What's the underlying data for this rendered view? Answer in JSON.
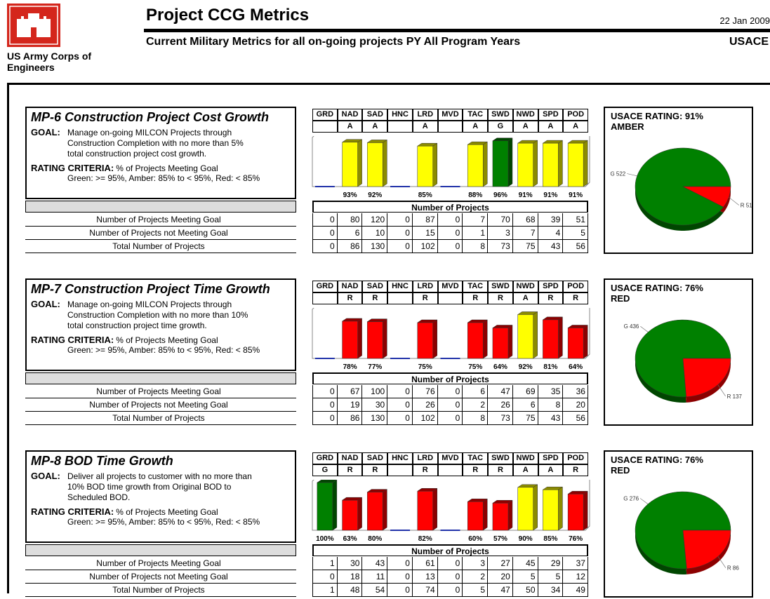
{
  "header": {
    "org": "US Army Corps of Engineers",
    "title": "Project CCG Metrics",
    "date": "22 Jan 2009",
    "subtitle": "Current Military Metrics for all on-going projects PY All Program Years",
    "agency": "USACE"
  },
  "districts": [
    "GRD",
    "NAD",
    "SAD",
    "HNC",
    "LRD",
    "MVD",
    "TAC",
    "SWD",
    "NWD",
    "SPD",
    "POD"
  ],
  "rating_colors": {
    "A": "#ffff00",
    "G": "#008000",
    "R": "#ff0000"
  },
  "ylim": [
    0,
    100
  ],
  "panels": [
    {
      "title": "MP-6 Construction Project Cost Growth",
      "goal_label": "GOAL:",
      "goal": "Manage on-going MILCON Projects through Construction Completion with no more than 5% total construction project cost growth.",
      "criteria_label": "RATING CRITERIA:",
      "criteria": "% of Projects Meeting Goal",
      "thresholds": "Green: >= 95%,  Amber: 85% to < 95%,  Red: < 85%",
      "ratings": [
        null,
        "A",
        "A",
        null,
        "A",
        null,
        "A",
        "G",
        "A",
        "A",
        "A"
      ],
      "percents": [
        null,
        93,
        92,
        null,
        85,
        null,
        88,
        96,
        91,
        91,
        91
      ],
      "percent_labels": [
        null,
        "93%",
        "92%",
        null,
        "85%",
        null,
        "88%",
        "96%",
        "91%",
        "91%",
        "91%"
      ],
      "table_heading": "Number of Projects",
      "rows": [
        {
          "label": "Number of Projects Meeting Goal",
          "values": [
            0,
            80,
            120,
            0,
            87,
            0,
            7,
            70,
            68,
            39,
            51
          ]
        },
        {
          "label": "Number of Projects not Meeting Goal",
          "values": [
            0,
            6,
            10,
            0,
            15,
            0,
            1,
            3,
            7,
            4,
            5
          ]
        },
        {
          "label": "Total Number of Projects",
          "values": [
            0,
            86,
            130,
            0,
            102,
            0,
            8,
            73,
            75,
            43,
            56
          ]
        }
      ],
      "rating_label": "USACE RATING: 91%",
      "rating_status": "AMBER",
      "pie": [
        {
          "label": "G 522",
          "value": 522,
          "color": "#008000"
        },
        {
          "label": "R 51",
          "value": 51,
          "color": "#ff0000"
        }
      ]
    },
    {
      "title": "MP-7 Construction Project Time Growth",
      "goal_label": "GOAL:",
      "goal": "Manage on-going MILCON Projects through Construction Completion with no more than 10% total construction project time growth.",
      "criteria_label": "RATING CRITERIA:",
      "criteria": "% of Projects Meeting Goal",
      "thresholds": "Green: >= 95%,  Amber: 85% to < 95%,  Red: < 85%",
      "ratings": [
        null,
        "R",
        "R",
        null,
        "R",
        null,
        "R",
        "R",
        "A",
        "R",
        "R"
      ],
      "percents": [
        null,
        78,
        77,
        null,
        75,
        null,
        75,
        64,
        92,
        81,
        64
      ],
      "percent_labels": [
        null,
        "78%",
        "77%",
        null,
        "75%",
        null,
        "75%",
        "64%",
        "92%",
        "81%",
        "64%"
      ],
      "table_heading": "Number of Projects",
      "rows": [
        {
          "label": "Number of Projects Meeting Goal",
          "values": [
            0,
            67,
            100,
            0,
            76,
            0,
            6,
            47,
            69,
            35,
            36
          ]
        },
        {
          "label": "Number of Projects not Meeting Goal",
          "values": [
            0,
            19,
            30,
            0,
            26,
            0,
            2,
            26,
            6,
            8,
            20
          ]
        },
        {
          "label": "Total Number of Projects",
          "values": [
            0,
            86,
            130,
            0,
            102,
            0,
            8,
            73,
            75,
            43,
            56
          ]
        }
      ],
      "rating_label": "USACE RATING: 76%",
      "rating_status": "RED",
      "pie": [
        {
          "label": "G 436",
          "value": 436,
          "color": "#008000"
        },
        {
          "label": "R 137",
          "value": 137,
          "color": "#ff0000"
        }
      ]
    },
    {
      "title": "MP-8 BOD Time Growth",
      "goal_label": "GOAL:",
      "goal": "Deliver all projects to customer with no more than 10% BOD time growth from Original BOD to Scheduled BOD.",
      "criteria_label": "RATING CRITERIA:",
      "criteria": "% of Projects Meeting Goal",
      "thresholds": "Green: >= 95%,  Amber: 85% to < 95%,  Red: < 85%",
      "ratings": [
        "G",
        "R",
        "R",
        null,
        "R",
        null,
        "R",
        "R",
        "A",
        "A",
        "R"
      ],
      "percents": [
        100,
        63,
        80,
        null,
        82,
        null,
        60,
        57,
        90,
        85,
        76
      ],
      "percent_labels": [
        "100%",
        "63%",
        "80%",
        null,
        "82%",
        null,
        "60%",
        "57%",
        "90%",
        "85%",
        "76%"
      ],
      "table_heading": "Number of Projects",
      "rows": [
        {
          "label": "Number of Projects Meeting Goal",
          "values": [
            1,
            30,
            43,
            0,
            61,
            0,
            3,
            27,
            45,
            29,
            37
          ]
        },
        {
          "label": "Number of Projects not Meeting Goal",
          "values": [
            0,
            18,
            11,
            0,
            13,
            0,
            2,
            20,
            5,
            5,
            12
          ]
        },
        {
          "label": "Total Number of Projects",
          "values": [
            1,
            48,
            54,
            0,
            74,
            0,
            5,
            47,
            50,
            34,
            49
          ]
        }
      ],
      "rating_label": "USACE RATING: 76%",
      "rating_status": "RED",
      "pie": [
        {
          "label": "G 276",
          "value": 276,
          "color": "#008000"
        },
        {
          "label": "R 86",
          "value": 86,
          "color": "#ff0000"
        }
      ]
    }
  ]
}
